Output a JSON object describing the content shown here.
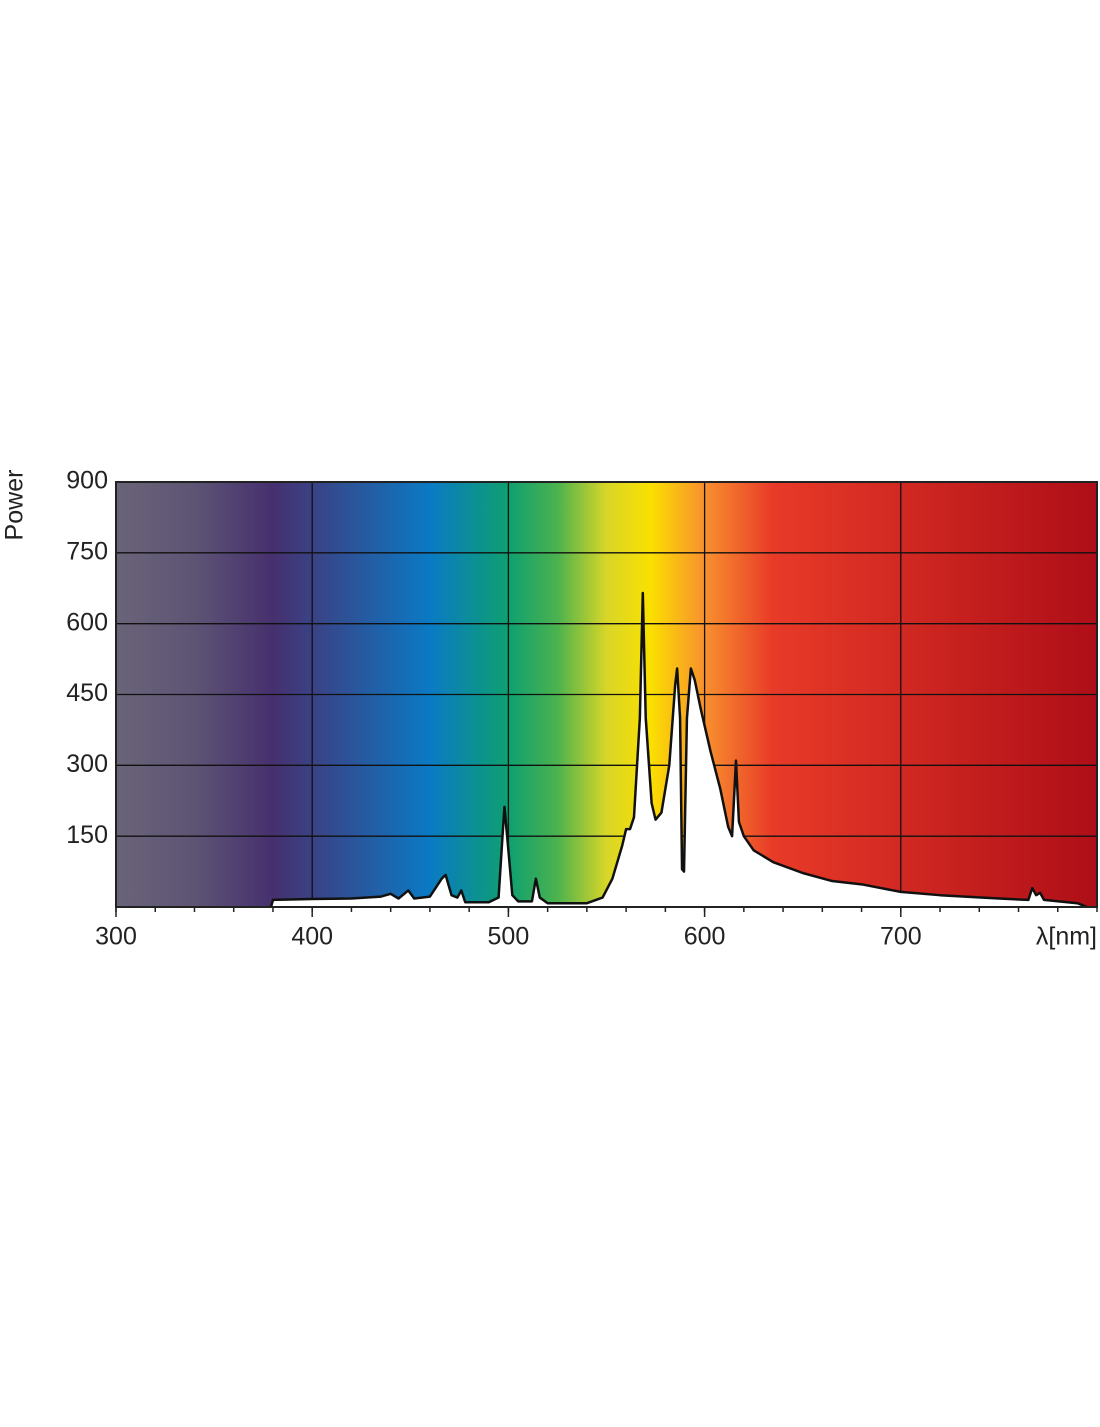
{
  "chart_data": {
    "type": "line",
    "y_label": "Power",
    "x_label": "λ[nm]",
    "xlim": [
      300,
      800
    ],
    "xticks": [
      300,
      400,
      500,
      600,
      700
    ],
    "ylim": [
      0,
      900
    ],
    "yticks": [
      150,
      300,
      450,
      600,
      750,
      900
    ],
    "grid": true,
    "series": [
      {
        "color": "#111111",
        "x": [
          379,
          380,
          400,
          420,
          435,
          440,
          444,
          449,
          452,
          460,
          466,
          468,
          471,
          474,
          476,
          478,
          490,
          495,
          497,
          498,
          500,
          502,
          505,
          512,
          514,
          516,
          520,
          540,
          548,
          553,
          558,
          560,
          562,
          564,
          567,
          568.5,
          570,
          573,
          575,
          578,
          582,
          585,
          586,
          587.5,
          588.5,
          589.5,
          591,
          593,
          595,
          598,
          603,
          608,
          612,
          614,
          616,
          617.5,
          620,
          625,
          635,
          650,
          665,
          680,
          700,
          720,
          750,
          765,
          767,
          769,
          771,
          773,
          790,
          795
        ],
        "values": [
          0,
          15,
          17,
          18,
          22,
          28,
          18,
          35,
          18,
          22,
          60,
          68,
          25,
          20,
          35,
          10,
          10,
          20,
          150,
          212,
          120,
          25,
          12,
          12,
          60,
          20,
          8,
          8,
          20,
          60,
          130,
          165,
          165,
          190,
          400,
          665,
          400,
          220,
          185,
          200,
          300,
          470,
          505,
          400,
          80,
          75,
          400,
          505,
          480,
          420,
          330,
          250,
          170,
          150,
          310,
          180,
          150,
          120,
          95,
          72,
          55,
          48,
          32,
          25,
          18,
          15,
          40,
          25,
          30,
          15,
          8,
          0
        ]
      }
    ]
  }
}
